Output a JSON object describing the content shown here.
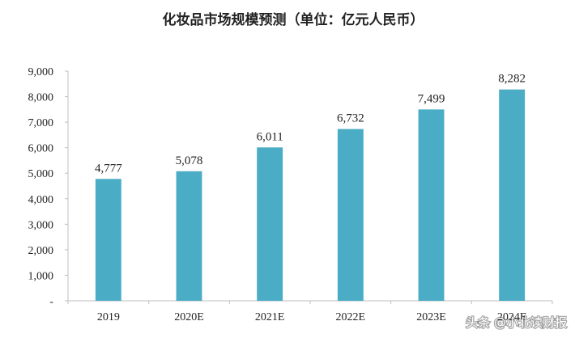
{
  "chart_data": {
    "type": "bar",
    "title": "化妆品市场规模预测（单位：亿元人民币）",
    "categories": [
      "2019",
      "2020E",
      "2021E",
      "2022E",
      "2023E",
      "2024E"
    ],
    "values": [
      4777,
      5078,
      6011,
      6732,
      7499,
      8282
    ],
    "value_labels": [
      "4,777",
      "5,078",
      "6,011",
      "6,732",
      "7,499",
      "8,282"
    ],
    "y_ticks": [
      0,
      1000,
      2000,
      3000,
      4000,
      5000,
      6000,
      7000,
      8000,
      9000
    ],
    "y_tick_labels": [
      "-",
      "1,000",
      "2,000",
      "3,000",
      "4,000",
      "5,000",
      "6,000",
      "7,000",
      "8,000",
      "9,000"
    ],
    "ylim": [
      0,
      9000
    ],
    "bar_color": "#4BACC6",
    "grid": false,
    "legend": "none"
  },
  "watermark": {
    "text": "头条 @小北读财报"
  }
}
